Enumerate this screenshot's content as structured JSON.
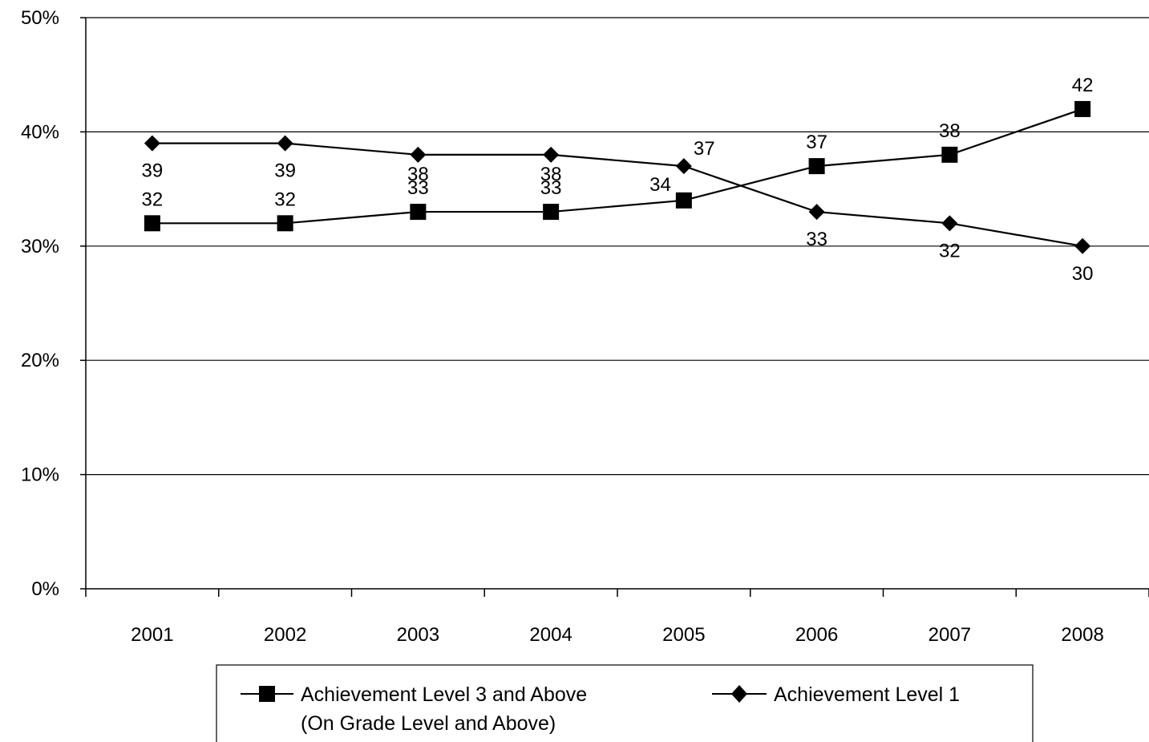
{
  "chart_data": {
    "type": "line",
    "title": "",
    "xlabel": "",
    "ylabel": "",
    "categories": [
      "2001",
      "2002",
      "2003",
      "2004",
      "2005",
      "2006",
      "2007",
      "2008"
    ],
    "ylim": [
      0,
      50
    ],
    "yticks": [
      0,
      10,
      20,
      30,
      40,
      50
    ],
    "ytick_labels": [
      "0%",
      "10%",
      "20%",
      "30%",
      "40%",
      "50%"
    ],
    "grid": true,
    "legend_position": "bottom",
    "series": [
      {
        "name": "Achievement Level 3 and Above",
        "name_line2": "(On Grade Level and Above)",
        "marker": "square",
        "color": "#000000",
        "values": [
          32,
          32,
          33,
          33,
          34,
          37,
          38,
          42
        ],
        "labels": [
          "32",
          "32",
          "33",
          "33",
          "34",
          "37",
          "38",
          "42"
        ]
      },
      {
        "name": "Achievement Level 1",
        "marker": "diamond",
        "color": "#000000",
        "values": [
          39,
          39,
          38,
          38,
          37,
          33,
          32,
          30
        ],
        "labels": [
          "39",
          "39",
          "38",
          "38",
          "37",
          "33",
          "32",
          "30"
        ]
      }
    ]
  }
}
